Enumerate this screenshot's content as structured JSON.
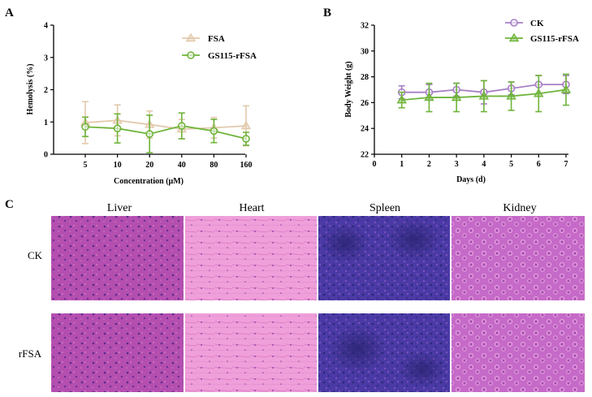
{
  "panels": {
    "a_letter": "A",
    "b_letter": "B",
    "c_letter": "C"
  },
  "colors": {
    "fsa": "#e2c9ac",
    "gs115_rfsa": "#6fb43a",
    "ck": "#a77fc6",
    "axis": "#000000"
  },
  "chart_data": [
    {
      "id": "hemolysis",
      "type": "line",
      "xlabel": "Concentration (μM)",
      "ylabel": "Hemolysis (%)",
      "categories": [
        "5",
        "10",
        "20",
        "40",
        "80",
        "160"
      ],
      "ylim": [
        0,
        4
      ],
      "yticks": [
        "0",
        "1",
        "2",
        "3",
        "4"
      ],
      "legend_position": "top-right",
      "error_bars": true,
      "series": [
        {
          "name": "FSA",
          "marker": "triangle",
          "color": "#e2c9ac",
          "values": [
            0.98,
            1.05,
            0.92,
            0.78,
            0.82,
            0.88
          ],
          "errors": [
            0.65,
            0.48,
            0.42,
            0.3,
            0.32,
            0.62
          ]
        },
        {
          "name": "GS115-rFSA",
          "marker": "circle",
          "color": "#6fb43a",
          "values": [
            0.85,
            0.8,
            0.63,
            0.88,
            0.72,
            0.48
          ],
          "errors": [
            0.3,
            0.45,
            0.58,
            0.4,
            0.36,
            0.2
          ]
        }
      ]
    },
    {
      "id": "body_weight",
      "type": "line",
      "xlabel": "Days (d)",
      "ylabel": "Body Weight (g)",
      "xticks": [
        "0",
        "1",
        "2",
        "3",
        "4",
        "5",
        "6",
        "7"
      ],
      "xlim": [
        0,
        7
      ],
      "ylim": [
        22,
        32
      ],
      "yticks": [
        "22",
        "24",
        "26",
        "28",
        "30",
        "32"
      ],
      "legend_position": "top-right",
      "error_bars": true,
      "series": [
        {
          "name": "CK",
          "marker": "circle",
          "color": "#a77fc6",
          "x": [
            1,
            2,
            3,
            4,
            5,
            6,
            7
          ],
          "values": [
            26.8,
            26.8,
            27.0,
            26.8,
            27.1,
            27.4,
            27.4
          ],
          "errors": [
            0.5,
            0.6,
            0.5,
            0.9,
            0.5,
            0.7,
            0.7
          ]
        },
        {
          "name": "GS115-rFSA",
          "marker": "triangle",
          "color": "#6fb43a",
          "x": [
            1,
            2,
            3,
            4,
            5,
            6,
            7
          ],
          "values": [
            26.2,
            26.4,
            26.4,
            26.5,
            26.5,
            26.7,
            27.0
          ],
          "errors": [
            0.6,
            1.1,
            1.1,
            1.2,
            1.1,
            1.4,
            1.2
          ]
        }
      ]
    }
  ],
  "histology": {
    "columns": [
      "Liver",
      "Heart",
      "Spleen",
      "Kidney"
    ],
    "rows": [
      "CK",
      "rFSA"
    ]
  }
}
